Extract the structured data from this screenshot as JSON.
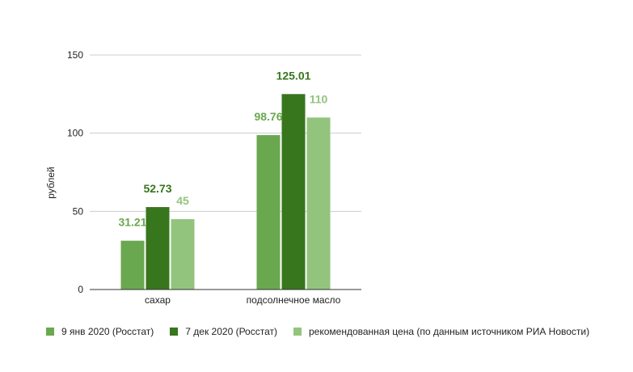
{
  "chart_data": {
    "type": "bar",
    "categories": [
      "сахар",
      "подсолнечное масло"
    ],
    "series": [
      {
        "name": "9 янв 2020 (Росстат)",
        "values": [
          31.21,
          98.76
        ],
        "color": "#6aa84f",
        "label_color": "#6aa84f"
      },
      {
        "name": "7 дек 2020 (Росстат)",
        "values": [
          52.73,
          125.01
        ],
        "color": "#38761d",
        "label_color": "#38761d"
      },
      {
        "name": "рекомендованная цена (по данным источником РИА Новости)",
        "values": [
          45,
          110
        ],
        "color": "#93c47d",
        "label_color": "#93c47d"
      }
    ],
    "data_labels": [
      [
        "31.21",
        "98.76"
      ],
      [
        "52.73",
        "125.01"
      ],
      [
        "45",
        "110"
      ]
    ],
    "ylabel": "рублей",
    "xlabel": "",
    "ylim": [
      0,
      150
    ],
    "yticks": [
      0,
      50,
      100,
      150
    ],
    "grid": true,
    "legend_position": "bottom"
  }
}
